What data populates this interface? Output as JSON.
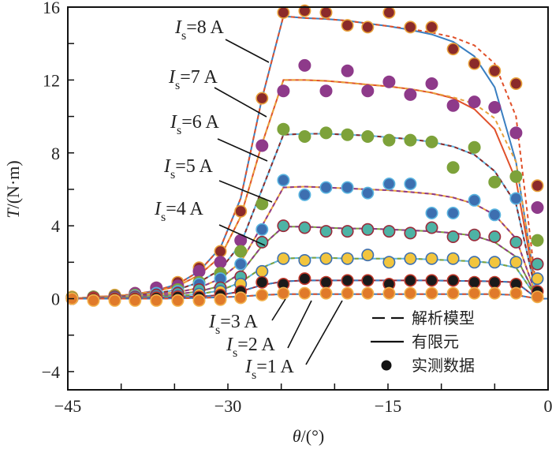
{
  "chart_data": {
    "type": "line",
    "title": "",
    "xlabel": "θ/(°)",
    "ylabel": "T/(N·m)",
    "xlim": [
      -45,
      0
    ],
    "ylim": [
      -5,
      16
    ],
    "xticks": [
      -45,
      -30,
      -15,
      0
    ],
    "xtick_labels": [
      "−45",
      "−30",
      "−15",
      "0"
    ],
    "x_minor_ticks": [
      -40,
      -35,
      -25,
      -20,
      -10,
      -5
    ],
    "yticks": [
      16,
      12,
      8,
      4,
      0,
      -4
    ],
    "ytick_labels": [
      "16",
      "12",
      "8",
      "4",
      "0",
      "−4"
    ],
    "y_minor_ticks": [
      14,
      10,
      6,
      2,
      -2
    ],
    "grid": false,
    "legend": {
      "position": "bottom-right",
      "entries": [
        {
          "label": "解析模型",
          "style": "dashed-line"
        },
        {
          "label": "有限元",
          "style": "solid-line"
        },
        {
          "label": "实测数据",
          "style": "filled-circle"
        }
      ]
    },
    "x": [
      -44.6,
      -42.6,
      -40.6,
      -38.7,
      -36.7,
      -34.7,
      -32.7,
      -30.7,
      -28.8,
      -26.8,
      -24.8,
      -22.8,
      -20.8,
      -18.8,
      -16.9,
      -14.9,
      -12.9,
      -10.9,
      -8.9,
      -6.9,
      -5.0,
      -3.0,
      -1.0
    ],
    "series": [
      {
        "name": "Is=8 A",
        "label": "8 A",
        "marker_color": "#8b2a2a",
        "edge_color": "#e8a13a",
        "fem_color": "#3a7fc1",
        "model_color": "#e0502a",
        "measured": [
          0.1,
          0.1,
          0.2,
          0.3,
          0.6,
          0.9,
          1.7,
          2.6,
          4.8,
          11.0,
          15.7,
          15.8,
          15.7,
          15.0,
          14.9,
          15.7,
          14.9,
          14.9,
          13.7,
          12.9,
          12.5,
          11.8,
          6.2
        ],
        "fem": [
          0.0,
          0.1,
          0.15,
          0.25,
          0.45,
          0.8,
          1.5,
          2.8,
          5.5,
          11.0,
          15.5,
          15.4,
          15.35,
          15.25,
          15.1,
          14.95,
          14.75,
          14.5,
          14.1,
          13.3,
          11.6,
          7.5,
          0.0
        ],
        "model": [
          0.0,
          0.1,
          0.15,
          0.25,
          0.45,
          0.8,
          1.5,
          2.8,
          5.5,
          11.0,
          15.5,
          15.4,
          15.35,
          15.25,
          15.1,
          14.95,
          14.8,
          14.6,
          14.35,
          13.9,
          12.9,
          10.0,
          0.0
        ]
      },
      {
        "name": "Is=7 A",
        "label": "7 A",
        "marker_color": "#8e3a8a",
        "edge_color": "#8e3a8a",
        "fem_color": "#e0502a",
        "model_color": "#e8a13a",
        "measured": [
          0.05,
          0.1,
          0.15,
          0.3,
          0.6,
          0.7,
          1.5,
          2.0,
          3.2,
          8.4,
          11.4,
          12.8,
          11.4,
          12.5,
          11.4,
          11.9,
          11.2,
          11.8,
          10.6,
          10.8,
          10.5,
          9.1,
          5.0
        ],
        "fem": [
          0.0,
          0.1,
          0.15,
          0.25,
          0.4,
          0.7,
          1.3,
          2.3,
          4.5,
          8.5,
          12.0,
          12.0,
          11.95,
          11.85,
          11.75,
          11.65,
          11.5,
          11.3,
          11.0,
          10.4,
          9.3,
          6.5,
          0.0
        ],
        "model": [
          0.0,
          0.1,
          0.15,
          0.25,
          0.4,
          0.7,
          1.3,
          2.3,
          4.5,
          8.5,
          12.0,
          12.0,
          11.95,
          11.85,
          11.75,
          11.65,
          11.5,
          11.3,
          11.05,
          10.7,
          9.9,
          7.5,
          0.0
        ]
      },
      {
        "name": "Is=6 A",
        "label": "6 A",
        "marker_color": "#7da23a",
        "edge_color": "#7da23a",
        "fem_color": "#5ab4e0",
        "model_color": "#8b2a2a",
        "measured": [
          0.05,
          0.1,
          0.15,
          0.2,
          0.3,
          0.5,
          0.9,
          1.4,
          2.6,
          5.2,
          9.3,
          8.9,
          9.1,
          9.0,
          8.9,
          8.7,
          8.7,
          8.6,
          7.2,
          8.3,
          6.4,
          6.7,
          3.2
        ],
        "fem": [
          0.0,
          0.05,
          0.1,
          0.2,
          0.3,
          0.5,
          0.9,
          1.6,
          3.0,
          6.0,
          9.0,
          9.05,
          9.05,
          9.0,
          8.95,
          8.85,
          8.75,
          8.6,
          8.35,
          7.9,
          7.0,
          5.2,
          0.0
        ],
        "model": [
          0.0,
          0.05,
          0.1,
          0.2,
          0.3,
          0.5,
          0.9,
          1.6,
          3.0,
          6.0,
          9.0,
          9.05,
          9.05,
          9.0,
          8.95,
          8.85,
          8.75,
          8.6,
          8.35,
          7.9,
          7.0,
          5.2,
          0.0
        ]
      },
      {
        "name": "Is=5 A",
        "label": "5 A",
        "marker_color": "#3d6fb0",
        "edge_color": "#5ab4e0",
        "fem_color": "#e8a13a",
        "model_color": "#8e3a8a",
        "measured": [
          0.0,
          0.05,
          0.1,
          0.15,
          0.3,
          0.4,
          0.8,
          1.1,
          1.9,
          3.8,
          6.5,
          5.7,
          6.1,
          6.1,
          5.8,
          6.3,
          6.3,
          4.7,
          4.7,
          5.4,
          4.6,
          5.5,
          1.9
        ],
        "fem": [
          0.0,
          0.05,
          0.1,
          0.15,
          0.25,
          0.35,
          0.6,
          1.1,
          2.0,
          4.0,
          6.1,
          6.15,
          6.1,
          6.05,
          6.0,
          5.95,
          5.85,
          5.75,
          5.55,
          5.2,
          4.6,
          3.3,
          0.0
        ],
        "model": [
          0.0,
          0.05,
          0.1,
          0.15,
          0.25,
          0.35,
          0.6,
          1.1,
          2.0,
          4.0,
          6.1,
          6.15,
          6.1,
          6.05,
          6.0,
          5.95,
          5.85,
          5.75,
          5.55,
          5.2,
          4.6,
          3.3,
          0.0
        ]
      },
      {
        "name": "Is=4 A",
        "label": "4 A",
        "marker_color": "#4db3a5",
        "edge_color": "#9b2a3a",
        "fem_color": "#7da23a",
        "model_color": "#8e3a8a",
        "measured": [
          0.0,
          0.05,
          0.1,
          0.1,
          0.2,
          0.3,
          0.5,
          0.6,
          1.2,
          3.1,
          4.0,
          3.9,
          3.7,
          3.7,
          3.8,
          3.7,
          3.6,
          3.9,
          3.4,
          3.5,
          3.4,
          3.1,
          1.9
        ],
        "fem": [
          0.0,
          0.03,
          0.06,
          0.1,
          0.15,
          0.25,
          0.4,
          0.7,
          1.4,
          2.9,
          3.95,
          3.95,
          3.9,
          3.85,
          3.85,
          3.8,
          3.75,
          3.7,
          3.6,
          3.45,
          3.1,
          2.3,
          0.0
        ],
        "model": [
          0.0,
          0.03,
          0.06,
          0.1,
          0.15,
          0.25,
          0.4,
          0.7,
          1.4,
          2.9,
          3.95,
          3.95,
          3.9,
          3.85,
          3.85,
          3.8,
          3.75,
          3.7,
          3.6,
          3.45,
          3.1,
          2.3,
          0.0
        ]
      },
      {
        "name": "Is=3 A",
        "label": "3 A",
        "marker_color": "#f2c53d",
        "edge_color": "#3d6fb0",
        "fem_color": "#5ab4e0",
        "model_color": "#7da23a",
        "measured": [
          0.0,
          0.0,
          0.05,
          0.05,
          0.1,
          0.15,
          0.25,
          0.4,
          0.8,
          1.5,
          2.2,
          2.1,
          2.2,
          2.2,
          2.4,
          2.0,
          2.2,
          2.2,
          2.2,
          2.0,
          2.0,
          2.0,
          1.1
        ],
        "fem": [
          0.0,
          0.02,
          0.04,
          0.06,
          0.1,
          0.15,
          0.25,
          0.45,
          0.9,
          1.7,
          2.2,
          2.25,
          2.25,
          2.2,
          2.2,
          2.2,
          2.2,
          2.15,
          2.1,
          2.05,
          1.95,
          1.7,
          0.0
        ],
        "model": [
          0.0,
          0.02,
          0.04,
          0.06,
          0.1,
          0.15,
          0.25,
          0.45,
          0.9,
          1.7,
          2.2,
          2.25,
          2.25,
          2.2,
          2.2,
          2.2,
          2.2,
          2.15,
          2.1,
          2.05,
          1.95,
          1.7,
          0.0
        ]
      },
      {
        "name": "Is=2 A",
        "label": "2 A",
        "marker_color": "#1a1a1a",
        "edge_color": "#c0392b",
        "fem_color": "#9b2a3a",
        "model_color": "#3a7fc1",
        "measured": [
          0.0,
          0.0,
          0.0,
          0.0,
          0.05,
          0.1,
          0.1,
          0.2,
          0.4,
          0.9,
          0.8,
          1.1,
          0.9,
          1.0,
          1.0,
          0.8,
          1.0,
          1.0,
          1.0,
          0.9,
          0.9,
          0.8,
          0.4
        ],
        "fem": [
          0.0,
          0.01,
          0.02,
          0.03,
          0.05,
          0.08,
          0.12,
          0.2,
          0.4,
          0.75,
          0.95,
          1.0,
          1.0,
          1.0,
          1.0,
          1.0,
          1.0,
          1.0,
          0.98,
          0.97,
          0.95,
          0.9,
          0.0
        ],
        "model": [
          0.0,
          0.01,
          0.02,
          0.03,
          0.05,
          0.08,
          0.12,
          0.2,
          0.4,
          0.75,
          0.95,
          1.0,
          1.0,
          1.0,
          1.0,
          1.0,
          1.0,
          1.0,
          0.98,
          0.97,
          0.95,
          0.9,
          0.0
        ]
      },
      {
        "name": "Is=1 A",
        "label": "1 A",
        "marker_color": "#e07a2a",
        "edge_color": "#f2b24d",
        "fem_color": "#3a7fc1",
        "model_color": "#e0502a",
        "measured": [
          0.0,
          -0.1,
          -0.1,
          -0.1,
          -0.1,
          -0.1,
          -0.1,
          -0.05,
          0.05,
          0.2,
          0.3,
          0.3,
          0.3,
          0.3,
          0.3,
          0.3,
          0.3,
          0.3,
          0.3,
          0.3,
          0.3,
          0.3,
          0.1
        ],
        "fem": [
          0.0,
          0.0,
          0.0,
          0.0,
          0.0,
          0.02,
          0.04,
          0.08,
          0.12,
          0.2,
          0.25,
          0.25,
          0.25,
          0.25,
          0.25,
          0.25,
          0.25,
          0.25,
          0.25,
          0.25,
          0.25,
          0.2,
          0.0
        ],
        "model": [
          0.0,
          0.0,
          0.0,
          0.0,
          0.0,
          0.02,
          0.04,
          0.08,
          0.12,
          0.2,
          0.25,
          0.25,
          0.25,
          0.25,
          0.25,
          0.25,
          0.25,
          0.25,
          0.25,
          0.25,
          0.25,
          0.2,
          0.0
        ]
      }
    ],
    "annotations": [
      {
        "symbol": "I",
        "sub": "s",
        "text": "=8 A",
        "points_to_series": "Is=8 A"
      },
      {
        "symbol": "I",
        "sub": "s",
        "text": "=7 A",
        "points_to_series": "Is=7 A"
      },
      {
        "symbol": "I",
        "sub": "s",
        "text": "=6 A",
        "points_to_series": "Is=6 A"
      },
      {
        "symbol": "I",
        "sub": "s",
        "text": "=5 A",
        "points_to_series": "Is=5 A"
      },
      {
        "symbol": "I",
        "sub": "s",
        "text": "=4 A",
        "points_to_series": "Is=4 A"
      },
      {
        "symbol": "I",
        "sub": "s",
        "text": "=3 A",
        "points_to_series": "Is=3 A"
      },
      {
        "symbol": "I",
        "sub": "s",
        "text": "=2 A",
        "points_to_series": "Is=2 A"
      },
      {
        "symbol": "I",
        "sub": "s",
        "text": "=1 A",
        "points_to_series": "Is=1 A"
      }
    ]
  }
}
